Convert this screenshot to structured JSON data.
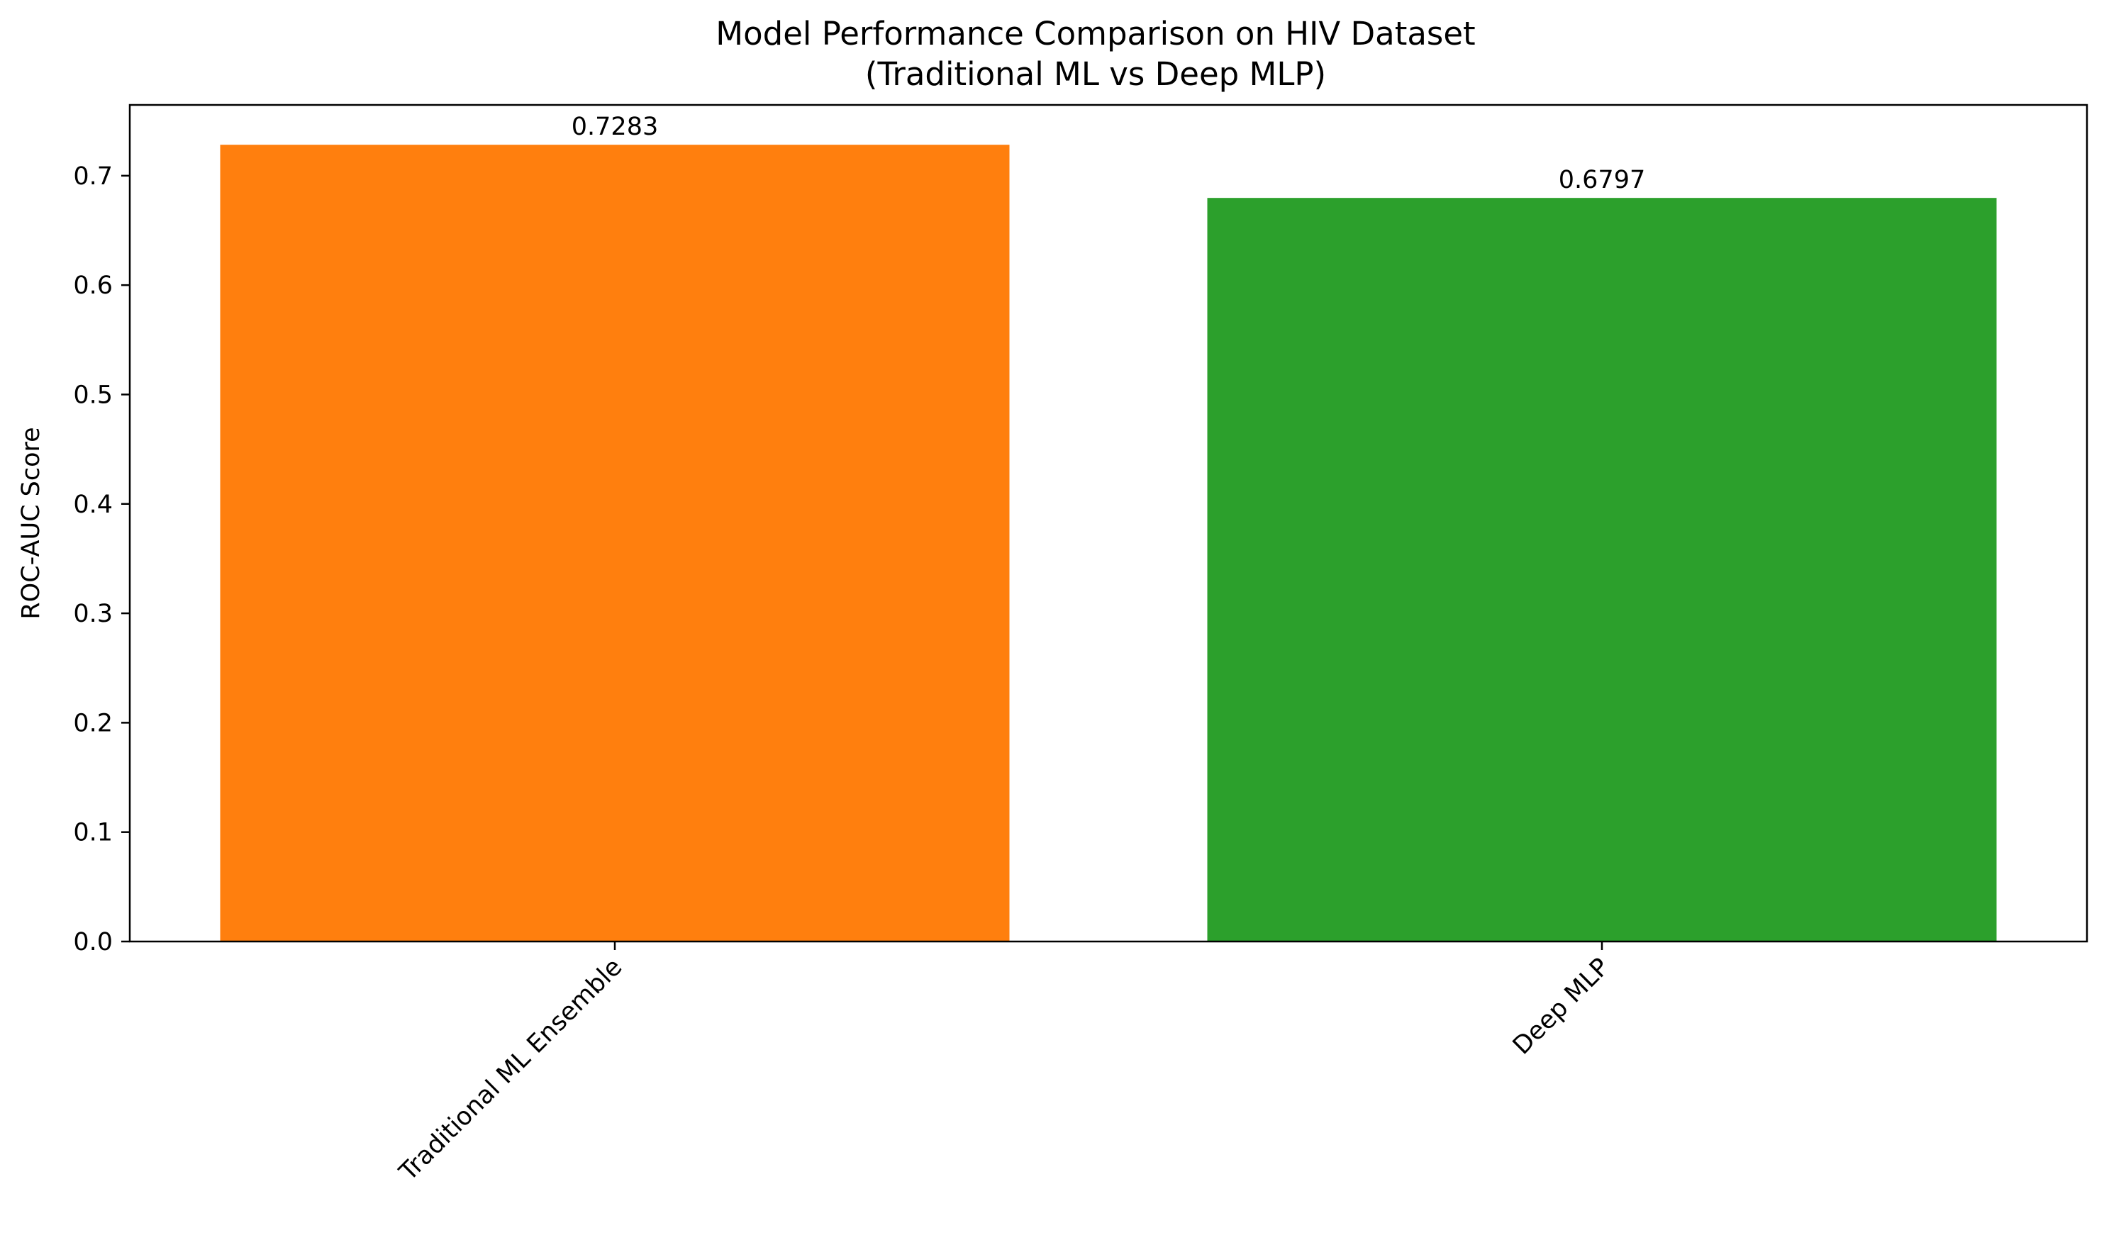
{
  "chart_data": {
    "type": "bar",
    "title": "Model Performance Comparison on HIV Dataset",
    "subtitle": "(Traditional ML vs Deep MLP)",
    "xlabel": "",
    "ylabel": "ROC-AUC Score",
    "categories": [
      "Traditional ML Ensemble",
      "Deep MLP"
    ],
    "values": [
      0.7283,
      0.6797
    ],
    "value_labels": [
      "0.7283",
      "0.6797"
    ],
    "colors": [
      "#ff7f0e",
      "#2ca02c"
    ],
    "ylim": [
      0,
      0.7647
    ],
    "yticks": [
      0.0,
      0.1,
      0.2,
      0.3,
      0.4,
      0.5,
      0.6,
      0.7
    ],
    "ytick_labels": [
      "0.0",
      "0.1",
      "0.2",
      "0.3",
      "0.4",
      "0.5",
      "0.6",
      "0.7"
    ],
    "x_tick_rotation": "45 degrees",
    "grid": false,
    "legend": "none"
  }
}
